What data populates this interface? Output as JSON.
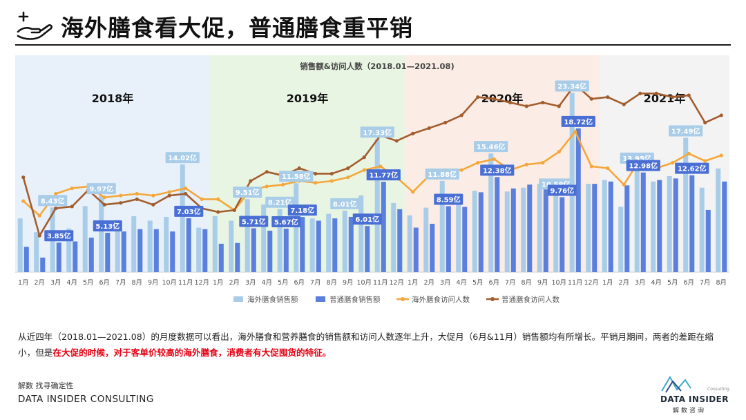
{
  "header": {
    "title": "海外膳食看大促，普通膳食重平销",
    "icon": "hand-plus-icon"
  },
  "chart_data": {
    "type": "bar+line",
    "title": "销售额&访问人数（2018.01—2021.08)",
    "eras": [
      {
        "label": "2018年",
        "color": "#e8f1fa",
        "start": 0,
        "end": 12
      },
      {
        "label": "2019年",
        "color": "#e9f5e3",
        "start": 12,
        "end": 24
      },
      {
        "label": "2020年",
        "color": "#fbede5",
        "start": 24,
        "end": 36
      },
      {
        "label": "2021年",
        "color": "#f3f3f3",
        "start": 36,
        "end": 44
      }
    ],
    "categories": [
      "1月",
      "2月",
      "3月",
      "4月",
      "5月",
      "6月",
      "7月",
      "8月",
      "9月",
      "10月",
      "11月",
      "12月",
      "1月",
      "2月",
      "3月",
      "4月",
      "5月",
      "6月",
      "7月",
      "8月",
      "9月",
      "10月",
      "11月",
      "12月",
      "1月",
      "2月",
      "3月",
      "4月",
      "5月",
      "6月",
      "7月",
      "8月",
      "9月",
      "10月",
      "11月",
      "12月",
      "1月",
      "2月",
      "3月",
      "4月",
      "5月",
      "6月",
      "7月",
      "8月"
    ],
    "bar_ylim": [
      0,
      25
    ],
    "line_ylim": [
      0,
      100
    ],
    "series": [
      {
        "name": "海外膳食销售额",
        "kind": "bar",
        "color": "#a9cde8",
        "values": [
          7.0,
          5.2,
          8.43,
          5.7,
          8.6,
          9.97,
          6.8,
          7.3,
          6.7,
          7.2,
          14.02,
          5.8,
          7.3,
          6.7,
          9.51,
          8.8,
          8.21,
          11.58,
          7.0,
          7.6,
          8.01,
          10.0,
          17.33,
          9.0,
          7.4,
          8.4,
          11.88,
          10.0,
          10.6,
          15.46,
          10.5,
          11.0,
          11.5,
          10.58,
          23.34,
          11.5,
          12.0,
          8.5,
          13.95,
          11.8,
          12.5,
          17.49,
          11.0,
          13.5
        ]
      },
      {
        "name": "普通膳食销售额",
        "kind": "bar",
        "color": "#5b7fdc",
        "values": [
          3.3,
          1.9,
          3.85,
          4.0,
          4.5,
          5.13,
          5.3,
          5.6,
          5.6,
          5.3,
          7.03,
          5.6,
          3.7,
          3.8,
          5.71,
          5.4,
          5.67,
          7.18,
          6.7,
          7.0,
          7.2,
          6.01,
          11.77,
          8.2,
          5.8,
          6.3,
          8.59,
          8.5,
          10.4,
          12.38,
          10.9,
          11.4,
          11.5,
          9.76,
          18.72,
          11.5,
          11.8,
          11.3,
          12.98,
          12.0,
          12.2,
          12.62,
          8.1,
          11.8
        ]
      },
      {
        "name": "海外膳食访问人数",
        "kind": "line",
        "color": "#f4a73a",
        "values": [
          39,
          31,
          43,
          46,
          47,
          41,
          42,
          43,
          42,
          44,
          46,
          40,
          40,
          34,
          45,
          47,
          48,
          50,
          49,
          50,
          52,
          56,
          58,
          52,
          44,
          53,
          56,
          56,
          60,
          62,
          56,
          59,
          60,
          66,
          77,
          58,
          57,
          48,
          62,
          57,
          60,
          65,
          61,
          64
        ]
      },
      {
        "name": "普通膳食访问人数",
        "kind": "line",
        "color": "#a25c2e",
        "values": [
          52,
          20,
          35,
          36,
          45,
          37,
          38,
          40,
          37,
          42,
          43,
          35,
          33,
          34,
          50,
          55,
          53,
          57,
          54,
          54,
          57,
          63,
          75,
          72,
          76,
          79,
          82,
          86,
          96,
          95,
          93,
          91,
          93,
          91,
          103,
          95,
          96,
          92,
          98,
          98,
          96,
          97,
          82,
          86
        ]
      }
    ],
    "labels": [
      {
        "series": 0,
        "index": 2,
        "text": "8.43亿"
      },
      {
        "series": 0,
        "index": 5,
        "text": "9.97亿"
      },
      {
        "series": 0,
        "index": 10,
        "text": "14.02亿"
      },
      {
        "series": 0,
        "index": 14,
        "text": "9.51亿"
      },
      {
        "series": 0,
        "index": 16,
        "text": "8.21亿"
      },
      {
        "series": 0,
        "index": 17,
        "text": "11.58亿"
      },
      {
        "series": 0,
        "index": 20,
        "text": "8.01亿"
      },
      {
        "series": 0,
        "index": 22,
        "text": "17.33亿"
      },
      {
        "series": 0,
        "index": 26,
        "text": "11.88亿"
      },
      {
        "series": 0,
        "index": 29,
        "text": "15.46亿"
      },
      {
        "series": 0,
        "index": 33,
        "text": "10.58亿"
      },
      {
        "series": 0,
        "index": 34,
        "text": "23.34亿"
      },
      {
        "series": 0,
        "index": 38,
        "text": "13.95亿"
      },
      {
        "series": 0,
        "index": 41,
        "text": "17.49亿"
      },
      {
        "series": 1,
        "index": 2,
        "text": "3.85亿"
      },
      {
        "series": 1,
        "index": 5,
        "text": "5.13亿"
      },
      {
        "series": 1,
        "index": 10,
        "text": "7.03亿"
      },
      {
        "series": 1,
        "index": 14,
        "text": "5.71亿"
      },
      {
        "series": 1,
        "index": 16,
        "text": "5.67亿"
      },
      {
        "series": 1,
        "index": 17,
        "text": "7.18亿"
      },
      {
        "series": 1,
        "index": 21,
        "text": "6.01亿"
      },
      {
        "series": 1,
        "index": 22,
        "text": "11.77亿"
      },
      {
        "series": 1,
        "index": 26,
        "text": "8.59亿"
      },
      {
        "series": 1,
        "index": 29,
        "text": "12.38亿"
      },
      {
        "series": 1,
        "index": 33,
        "text": "9.76亿"
      },
      {
        "series": 1,
        "index": 34,
        "text": "18.72亿"
      },
      {
        "series": 1,
        "index": 38,
        "text": "12.98亿"
      },
      {
        "series": 1,
        "index": 41,
        "text": "12.62亿"
      }
    ],
    "legend_position": "bottom"
  },
  "description": {
    "part1": "从近四年（2018.01—2021.08）的月度数据可以看出，海外膳食和营养膳食的销售额和访问人数逐年上升，大促月（6月&11月）销售额均有所增长。平销月期间，两者的差距在缩小，但是",
    "highlight": "在大促的时候，对于客单价较高的海外膳食，消费者有大促囤货的特征。"
  },
  "footer": {
    "source": "解数 找寻确定性",
    "company": "DATA INSIDER CONSULTING",
    "logo_name": "DATA INSIDER",
    "logo_sub": "解数咨询",
    "logo_tag": "Consulting"
  }
}
